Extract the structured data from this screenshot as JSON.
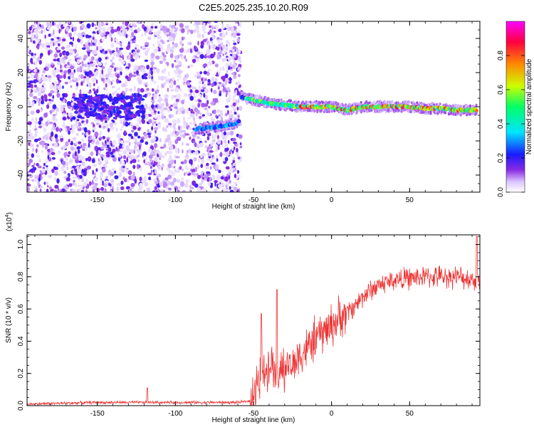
{
  "title": "C2E5.2025.235.10.20.R09",
  "chart_data": [
    {
      "type": "heatmap",
      "xlabel": "Height of straight line (km)",
      "ylabel": "Frequency (Hz)",
      "xlim": [
        -195,
        95
      ],
      "ylim": [
        -50,
        50
      ],
      "xticks": [
        -150,
        -100,
        -50,
        0,
        50
      ],
      "yticks": [
        -40,
        -20,
        0,
        20,
        40
      ],
      "colorbar": {
        "label": "Normalized spectral amplitude",
        "range": [
          0,
          1
        ],
        "ticks": [
          0.0,
          0.2,
          0.4,
          0.6,
          0.8
        ],
        "colors": [
          "#ffffff",
          "#dcc6ff",
          "#8a2be2",
          "#1a1aff",
          "#00e5ff",
          "#00ff66",
          "#ccff00",
          "#ff8800",
          "#ff0040",
          "#ff00ff"
        ]
      },
      "ridge": {
        "segments": [
          {
            "x": [
              -87,
              -75,
              -62,
              -59
            ],
            "y": [
              -13,
              -12,
              -10,
              -8
            ]
          },
          {
            "x": [
              -58,
              -50,
              -40,
              -30,
              -20,
              -10,
              0,
              10,
              20,
              30,
              40,
              50,
              60,
              70,
              80,
              93
            ],
            "y": [
              6,
              4,
              2,
              1,
              0,
              0,
              0,
              -2,
              0,
              0,
              0,
              0,
              -1,
              -1,
              -2,
              -2
            ]
          }
        ]
      }
    },
    {
      "type": "line",
      "xlabel": "Height of straight line (km)",
      "ylabel": "SNR (10 * v/v)",
      "y_multiplier": "(x10",
      "y_exponent": "4",
      "xlim": [
        -195,
        95
      ],
      "ylim": [
        0,
        1.06
      ],
      "xticks": [
        -150,
        -100,
        -50,
        0,
        50
      ],
      "yticks": [
        0.0,
        0.2,
        0.4,
        0.6,
        0.8,
        1.0
      ],
      "color": "#ee3333",
      "trend": {
        "x": [
          -195,
          -150,
          -120,
          -100,
          -80,
          -60,
          -52,
          -49,
          -45,
          -40,
          -35,
          -30,
          -25,
          -20,
          -15,
          -10,
          -5,
          0,
          5,
          10,
          15,
          20,
          30,
          40,
          50,
          60,
          70,
          80,
          93
        ],
        "y": [
          0.01,
          0.02,
          0.02,
          0.02,
          0.02,
          0.02,
          0.03,
          0.08,
          0.2,
          0.26,
          0.24,
          0.22,
          0.26,
          0.32,
          0.36,
          0.42,
          0.46,
          0.5,
          0.54,
          0.58,
          0.62,
          0.68,
          0.75,
          0.78,
          0.79,
          0.8,
          0.8,
          0.8,
          0.78
        ]
      },
      "spikes": [
        {
          "x": -118,
          "y": 0.11
        },
        {
          "x": -45,
          "y": 0.57
        },
        {
          "x": -35,
          "y": 0.72
        },
        {
          "x": 93,
          "y": 1.05
        }
      ]
    }
  ]
}
